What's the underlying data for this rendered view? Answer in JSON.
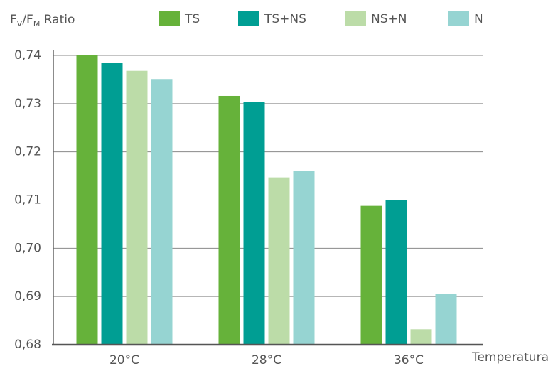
{
  "chart_data": {
    "type": "bar",
    "y_label": [
      {
        "text": "F"
      },
      {
        "text": "V",
        "sub": true
      },
      {
        "text": "/F"
      },
      {
        "text": "M",
        "sub": true
      },
      {
        "text": " Ratio"
      }
    ],
    "x_label": "Temperatura",
    "categories": [
      "20°C",
      "28°C",
      "36°C"
    ],
    "series": [
      {
        "name": "TS",
        "color": "#66b23a",
        "values": [
          0.74,
          0.7316,
          0.7088
        ]
      },
      {
        "name": "TS+NS",
        "color": "#009e93",
        "values": [
          0.7384,
          0.7304,
          0.71
        ]
      },
      {
        "name": "NS+N",
        "color": "#bcdca8",
        "values": [
          0.7368,
          0.7147,
          0.6832
        ]
      },
      {
        "name": "N",
        "color": "#96d4d2",
        "values": [
          0.7351,
          0.716,
          0.6905
        ]
      }
    ],
    "ylim": [
      0.68,
      0.74
    ],
    "yticks": [
      {
        "value": 0.68,
        "label": "0,68"
      },
      {
        "value": 0.69,
        "label": "0,69"
      },
      {
        "value": 0.7,
        "label": "0,70"
      },
      {
        "value": 0.71,
        "label": "0,71"
      },
      {
        "value": 0.72,
        "label": "0,72"
      },
      {
        "value": 0.73,
        "label": "0,73"
      },
      {
        "value": 0.74,
        "label": "0,74"
      }
    ],
    "grid": true
  }
}
